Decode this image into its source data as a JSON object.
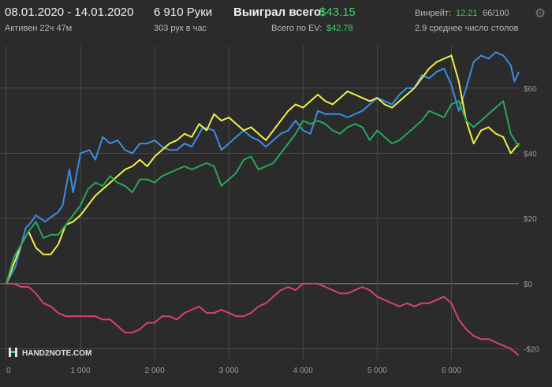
{
  "header": {
    "date_range": "08.01.2020 - 14.01.2020",
    "active": "Активен 22ч 47м",
    "hands": "6 910 Руки",
    "hands_per_hour": "303 рук в час",
    "won_total_label": "Выиграл всего:",
    "won_total_value": "$43.15",
    "ev_total_label": "Всего по EV:",
    "ev_total_value": "$42.78",
    "winrate_label": "Винрейт:",
    "winrate_value": "12.21",
    "winrate_unit": "66/100",
    "tables_avg": "2.9 среднее число столов",
    "settings_icon": "gear-icon"
  },
  "brand": {
    "text": "HAND2NOTE.COM",
    "icon": "h2n-logo-icon"
  },
  "colors": {
    "background": "#2b2b2b",
    "blue": "#3b8de0",
    "yellow": "#f0ef4a",
    "green": "#27a75a",
    "pink": "#d9416e",
    "gridline": "#4a4a4a",
    "zero_line": "#8a8a8a",
    "accent_green": "#3ed06a"
  },
  "chart_data": {
    "type": "line",
    "xlabel": "",
    "ylabel": "",
    "xlim": [
      0,
      6910
    ],
    "ylim": [
      -23,
      73
    ],
    "x_ticks": [
      0,
      1000,
      2000,
      3000,
      4000,
      5000,
      6000
    ],
    "x_tick_labels": [
      "0",
      "1 000",
      "2 000",
      "3 000",
      "4 000",
      "5 000",
      "6 000"
    ],
    "y_ticks": [
      60,
      40,
      20,
      0,
      -20
    ],
    "y_tick_labels": [
      "$60",
      "$40",
      "$20",
      "$0",
      "-$20"
    ],
    "grid": true,
    "legend": "none",
    "series": [
      {
        "color": "#3b8de0",
        "x": [
          0,
          120,
          260,
          340,
          400,
          520,
          700,
          760,
          850,
          900,
          1000,
          1120,
          1200,
          1300,
          1400,
          1500,
          1600,
          1700,
          1800,
          1900,
          2000,
          2100,
          2200,
          2300,
          2400,
          2500,
          2650,
          2800,
          2900,
          3000,
          3100,
          3200,
          3300,
          3400,
          3500,
          3600,
          3700,
          3800,
          3900,
          4000,
          4100,
          4200,
          4300,
          4400,
          4500,
          4600,
          4700,
          4800,
          4900,
          5000,
          5100,
          5200,
          5300,
          5400,
          5500,
          5600,
          5700,
          5800,
          5900,
          6000,
          6100,
          6200,
          6300,
          6400,
          6500,
          6600,
          6700,
          6800,
          6850,
          6910
        ],
        "y": [
          0,
          5,
          17,
          19,
          21,
          19,
          22,
          24,
          35,
          28,
          40,
          41,
          38,
          45,
          43,
          44,
          41,
          40,
          43,
          43,
          44,
          42,
          41,
          41,
          43,
          42,
          48,
          47,
          41,
          43,
          45,
          47,
          45,
          44,
          42,
          44,
          46,
          47,
          50,
          47,
          46,
          53,
          52,
          52,
          52,
          51,
          52,
          53,
          55,
          57,
          56,
          55,
          58,
          60,
          60,
          64,
          63,
          65,
          66,
          61,
          53,
          60,
          68,
          70,
          69,
          71,
          70,
          67,
          62,
          65
        ]
      },
      {
        "color": "#f0ef4a",
        "x": [
          0,
          100,
          200,
          300,
          400,
          500,
          600,
          700,
          800,
          900,
          1000,
          1100,
          1200,
          1300,
          1400,
          1500,
          1600,
          1700,
          1800,
          1900,
          2000,
          2100,
          2200,
          2300,
          2400,
          2500,
          2600,
          2700,
          2800,
          2900,
          3000,
          3100,
          3200,
          3300,
          3400,
          3500,
          3600,
          3700,
          3800,
          3900,
          4000,
          4100,
          4200,
          4300,
          4400,
          4500,
          4600,
          4700,
          4800,
          4900,
          5000,
          5100,
          5200,
          5300,
          5400,
          5500,
          5600,
          5700,
          5800,
          5900,
          6000,
          6100,
          6200,
          6300,
          6400,
          6500,
          6600,
          6700,
          6800,
          6910
        ],
        "y": [
          0,
          6,
          12,
          16,
          11,
          9,
          9,
          12,
          18,
          19,
          21,
          24,
          27,
          29,
          31,
          33,
          35,
          36,
          38,
          36,
          39,
          41,
          43,
          44,
          46,
          45,
          49,
          47,
          52,
          50,
          51,
          49,
          47,
          48,
          46,
          44,
          47,
          50,
          53,
          55,
          54,
          56,
          58,
          56,
          55,
          57,
          59,
          58,
          57,
          56,
          57,
          55,
          54,
          56,
          58,
          60,
          63,
          66,
          68,
          69,
          70,
          62,
          50,
          43,
          47,
          48,
          46,
          45,
          40,
          43
        ]
      },
      {
        "color": "#27a75a",
        "x": [
          0,
          100,
          200,
          300,
          400,
          500,
          600,
          700,
          800,
          900,
          1000,
          1100,
          1200,
          1300,
          1400,
          1500,
          1600,
          1700,
          1800,
          1900,
          2000,
          2100,
          2200,
          2300,
          2400,
          2500,
          2600,
          2700,
          2800,
          2900,
          3000,
          3100,
          3200,
          3300,
          3400,
          3500,
          3600,
          3700,
          3800,
          3900,
          4000,
          4100,
          4200,
          4300,
          4400,
          4500,
          4600,
          4700,
          4800,
          4900,
          5000,
          5100,
          5200,
          5300,
          5400,
          5500,
          5600,
          5700,
          5800,
          5900,
          6000,
          6100,
          6200,
          6300,
          6400,
          6500,
          6600,
          6700,
          6800,
          6910
        ],
        "y": [
          0,
          8,
          12,
          16,
          19,
          14,
          15,
          15,
          18,
          21,
          24,
          29,
          31,
          30,
          33,
          31,
          30,
          28,
          32,
          32,
          31,
          33,
          34,
          35,
          36,
          35,
          36,
          37,
          36,
          30,
          32,
          34,
          38,
          39,
          35,
          36,
          37,
          40,
          43,
          46,
          50,
          49,
          50,
          49,
          47,
          46,
          48,
          49,
          48,
          44,
          47,
          45,
          43,
          44,
          46,
          48,
          50,
          53,
          52,
          51,
          55,
          56,
          50,
          48,
          50,
          52,
          54,
          56,
          46,
          42
        ]
      },
      {
        "color": "#d9416e",
        "x": [
          0,
          100,
          200,
          300,
          400,
          500,
          600,
          700,
          800,
          900,
          1000,
          1100,
          1200,
          1300,
          1400,
          1500,
          1600,
          1700,
          1800,
          1900,
          2000,
          2100,
          2200,
          2300,
          2400,
          2500,
          2600,
          2700,
          2800,
          2900,
          3000,
          3100,
          3200,
          3300,
          3400,
          3500,
          3600,
          3700,
          3800,
          3900,
          4000,
          4100,
          4200,
          4300,
          4400,
          4500,
          4600,
          4700,
          4800,
          4900,
          5000,
          5100,
          5200,
          5300,
          5400,
          5500,
          5600,
          5700,
          5800,
          5900,
          6000,
          6100,
          6200,
          6300,
          6400,
          6500,
          6600,
          6700,
          6800,
          6910
        ],
        "y": [
          0,
          0,
          -1,
          -1,
          -3,
          -6,
          -7,
          -9,
          -10,
          -10,
          -10,
          -10,
          -10,
          -11,
          -11,
          -13,
          -15,
          -15,
          -14,
          -12,
          -12,
          -10,
          -10,
          -11,
          -9,
          -8,
          -7,
          -9,
          -9,
          -8,
          -9,
          -10,
          -10,
          -9,
          -7,
          -6,
          -4,
          -2,
          -1,
          -2,
          0,
          0,
          0,
          -1,
          -2,
          -3,
          -3,
          -2,
          -1,
          -2,
          -4,
          -5,
          -6,
          -7,
          -6,
          -7,
          -6,
          -6,
          -5,
          -4,
          -6,
          -11,
          -14,
          -16,
          -17,
          -17,
          -18,
          -19,
          -20,
          -22
        ]
      }
    ]
  }
}
